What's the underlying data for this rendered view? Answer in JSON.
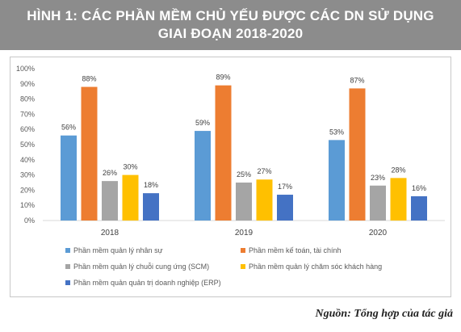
{
  "header": {
    "title_line1": "HÌNH 1: CÁC PHẦN MỀM CHỦ YẾU ĐƯỢC CÁC DN SỬ DỤNG",
    "title_line2": "GIAI ĐOẠN 2018-2020"
  },
  "source": "Nguồn: Tổng hợp của tác giả",
  "colors": {
    "title_bg": "#8c8c8c",
    "series": [
      "#5b9bd5",
      "#ed7d31",
      "#a5a5a5",
      "#ffc000",
      "#4472c4"
    ]
  },
  "chart_data": {
    "type": "bar",
    "categories": [
      "2018",
      "2019",
      "2020"
    ],
    "series": [
      {
        "name": "Phần mềm quản lý nhân sự",
        "values": [
          56,
          59,
          53
        ]
      },
      {
        "name": "Phần mềm kế toán, tài chính",
        "values": [
          88,
          89,
          87
        ]
      },
      {
        "name": "Phần mềm quản lý chuỗi cung ứng (SCM)",
        "values": [
          26,
          25,
          23
        ]
      },
      {
        "name": "Phần mềm quản lý chăm sóc khách hàng",
        "values": [
          30,
          27,
          28
        ]
      },
      {
        "name": "Phần mềm quản quản trị doanh nghiệp (ERP)",
        "values": [
          18,
          17,
          16
        ]
      }
    ],
    "data_labels": [
      [
        "56%",
        "59%",
        "53%"
      ],
      [
        "88%",
        "89%",
        "87%"
      ],
      [
        "26%",
        "25%",
        "23%"
      ],
      [
        "30%",
        "27%",
        "28%"
      ],
      [
        "18%",
        "17%",
        "16%"
      ]
    ],
    "yticks": [
      "0%",
      "10%",
      "20%",
      "30%",
      "40%",
      "50%",
      "60%",
      "70%",
      "80%",
      "90%",
      "100%"
    ],
    "ylim": [
      0,
      100
    ],
    "grid": false,
    "legend_position": "bottom"
  }
}
